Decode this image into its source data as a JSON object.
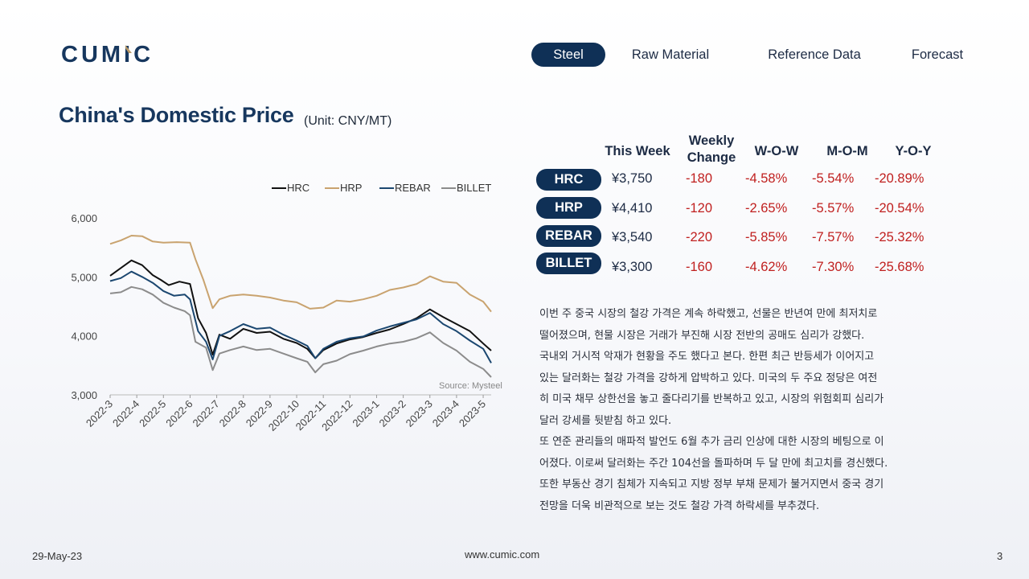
{
  "brand": {
    "logo_text": "CUMIC",
    "logo_color": "#17375e",
    "accent_color": "#b89968"
  },
  "nav": {
    "items": [
      "Steel",
      "Raw Material",
      "Reference Data",
      "Forecast"
    ],
    "active_index": 0
  },
  "page": {
    "title": "China's Domestic Price",
    "unit": "(Unit: CNY/MT)"
  },
  "table": {
    "headers": [
      "This Week",
      "Weekly\nChange",
      "W-O-W",
      "M-O-M",
      "Y-O-Y"
    ],
    "rows": [
      {
        "name": "HRC",
        "price": "¥3,750",
        "change": "-180",
        "wow": "-4.58%",
        "mom": "-5.54%",
        "yoy": "-20.89%"
      },
      {
        "name": "HRP",
        "price": "¥4,410",
        "change": "-120",
        "wow": "-2.65%",
        "mom": "-5.57%",
        "yoy": "-20.54%"
      },
      {
        "name": "REBAR",
        "price": "¥3,540",
        "change": "-220",
        "wow": "-5.85%",
        "mom": "-7.57%",
        "yoy": "-25.32%"
      },
      {
        "name": "BILLET",
        "price": "¥3,300",
        "change": "-160",
        "wow": "-4.62%",
        "mom": "-7.30%",
        "yoy": "-25.68%"
      }
    ]
  },
  "commentary": [
    "이번 주 중국 시장의 철강 가격은 계속 하락했고, 선물은 반년여 만에 최저치로",
    "떨어졌으며, 현물 시장은 거래가 부진해 시장 전반의 공매도 심리가 강했다.",
    "국내외 거시적 악재가 현황을 주도 했다고 본다. 한편 최근 반등세가 이어지고",
    "있는 달러화는 철강 가격을 강하게 압박하고 있다. 미국의 두 주요 정당은 여전",
    "히 미국 채무 상한선을 놓고 줄다리기를 반복하고 있고, 시장의 위험회피 심리가",
    "달러 강세를 뒷받침 하고 있다.",
    "또 연준 관리들의 매파적 발언도 6월 추가 금리 인상에 대한 시장의 베팅으로 이",
    "어졌다. 이로써 달러화는 주간 104선을 돌파하며 두 달 만에 최고치를 경신했다.",
    "또한 부동산 경기 침체가 지속되고 지방 정부 부채 문제가 불거지면서 중국 경기",
    "전망을 더욱 비관적으로 보는 것도 철강 가격 하락세를 부추겼다."
  ],
  "footer": {
    "date": "29-May-23",
    "url": "www.cumic.com",
    "page": "3"
  },
  "chart_data": {
    "type": "line",
    "ylim": [
      3000,
      6000
    ],
    "yticks": [
      "6,000",
      "5,000",
      "4,000",
      "3,000"
    ],
    "ytick_values": [
      6000,
      5000,
      4000,
      3000
    ],
    "x_categories": [
      "2022-3",
      "2022-4",
      "2022-5",
      "2022-6",
      "2022-7",
      "2022-8",
      "2022-9",
      "2022-10",
      "2022-11",
      "2022-12",
      "2023-1",
      "2023-2",
      "2023-3",
      "2023-4",
      "2023-5"
    ],
    "x_start_index": 0,
    "x_end_index": 14.3,
    "legend_position": "top",
    "source": "Source: Mysteel",
    "series": [
      {
        "name": "HRC",
        "color": "#111111",
        "points": [
          [
            0,
            5020
          ],
          [
            0.4,
            5150
          ],
          [
            0.8,
            5280
          ],
          [
            1.2,
            5200
          ],
          [
            1.6,
            5030
          ],
          [
            1.9,
            4950
          ],
          [
            2.2,
            4860
          ],
          [
            2.6,
            4920
          ],
          [
            3.0,
            4880
          ],
          [
            3.3,
            4300
          ],
          [
            3.6,
            4050
          ],
          [
            3.85,
            3680
          ],
          [
            4.1,
            4020
          ],
          [
            4.5,
            3950
          ],
          [
            5.0,
            4120
          ],
          [
            5.5,
            4050
          ],
          [
            6.0,
            4070
          ],
          [
            6.5,
            3950
          ],
          [
            7.0,
            3880
          ],
          [
            7.4,
            3780
          ],
          [
            7.7,
            3620
          ],
          [
            8.0,
            3760
          ],
          [
            8.5,
            3870
          ],
          [
            9.0,
            3940
          ],
          [
            9.5,
            3980
          ],
          [
            10.0,
            4050
          ],
          [
            10.5,
            4110
          ],
          [
            11.0,
            4200
          ],
          [
            11.5,
            4300
          ],
          [
            12.0,
            4450
          ],
          [
            12.5,
            4320
          ],
          [
            13.0,
            4200
          ],
          [
            13.5,
            4080
          ],
          [
            14.0,
            3870
          ],
          [
            14.3,
            3750
          ]
        ]
      },
      {
        "name": "HRP",
        "color": "#c9a36f",
        "points": [
          [
            0,
            5560
          ],
          [
            0.4,
            5620
          ],
          [
            0.8,
            5700
          ],
          [
            1.2,
            5690
          ],
          [
            1.6,
            5600
          ],
          [
            2.0,
            5580
          ],
          [
            2.5,
            5590
          ],
          [
            3.0,
            5580
          ],
          [
            3.2,
            5300
          ],
          [
            3.5,
            4950
          ],
          [
            3.85,
            4470
          ],
          [
            4.1,
            4620
          ],
          [
            4.5,
            4680
          ],
          [
            5.0,
            4700
          ],
          [
            5.5,
            4680
          ],
          [
            6.0,
            4650
          ],
          [
            6.5,
            4600
          ],
          [
            7.0,
            4570
          ],
          [
            7.5,
            4460
          ],
          [
            8.0,
            4480
          ],
          [
            8.5,
            4600
          ],
          [
            9.0,
            4580
          ],
          [
            9.5,
            4620
          ],
          [
            10.0,
            4680
          ],
          [
            10.5,
            4780
          ],
          [
            11.0,
            4820
          ],
          [
            11.5,
            4880
          ],
          [
            12.0,
            5010
          ],
          [
            12.5,
            4920
          ],
          [
            13.0,
            4900
          ],
          [
            13.5,
            4700
          ],
          [
            14.0,
            4580
          ],
          [
            14.3,
            4410
          ]
        ]
      },
      {
        "name": "REBAR",
        "color": "#1b4770",
        "points": [
          [
            0,
            4930
          ],
          [
            0.4,
            4980
          ],
          [
            0.8,
            5090
          ],
          [
            1.2,
            5000
          ],
          [
            1.6,
            4900
          ],
          [
            2.0,
            4760
          ],
          [
            2.4,
            4680
          ],
          [
            2.8,
            4700
          ],
          [
            3.0,
            4620
          ],
          [
            3.3,
            4080
          ],
          [
            3.6,
            3900
          ],
          [
            3.85,
            3600
          ],
          [
            4.1,
            4000
          ],
          [
            4.5,
            4080
          ],
          [
            5.0,
            4200
          ],
          [
            5.5,
            4120
          ],
          [
            6.0,
            4140
          ],
          [
            6.5,
            4020
          ],
          [
            7.0,
            3920
          ],
          [
            7.4,
            3830
          ],
          [
            7.7,
            3620
          ],
          [
            8.0,
            3780
          ],
          [
            8.5,
            3900
          ],
          [
            9.0,
            3960
          ],
          [
            9.5,
            3990
          ],
          [
            10.0,
            4090
          ],
          [
            10.5,
            4160
          ],
          [
            11.0,
            4220
          ],
          [
            11.5,
            4280
          ],
          [
            12.0,
            4390
          ],
          [
            12.5,
            4200
          ],
          [
            13.0,
            4080
          ],
          [
            13.5,
            3920
          ],
          [
            14.0,
            3780
          ],
          [
            14.3,
            3540
          ]
        ]
      },
      {
        "name": "BILLET",
        "color": "#8c8c8c",
        "points": [
          [
            0,
            4720
          ],
          [
            0.4,
            4740
          ],
          [
            0.8,
            4830
          ],
          [
            1.2,
            4790
          ],
          [
            1.6,
            4700
          ],
          [
            2.0,
            4560
          ],
          [
            2.4,
            4480
          ],
          [
            2.8,
            4420
          ],
          [
            3.0,
            4350
          ],
          [
            3.2,
            3900
          ],
          [
            3.6,
            3800
          ],
          [
            3.85,
            3420
          ],
          [
            4.1,
            3700
          ],
          [
            4.5,
            3760
          ],
          [
            5.0,
            3820
          ],
          [
            5.5,
            3760
          ],
          [
            6.0,
            3780
          ],
          [
            6.5,
            3700
          ],
          [
            7.0,
            3620
          ],
          [
            7.4,
            3560
          ],
          [
            7.7,
            3380
          ],
          [
            8.0,
            3520
          ],
          [
            8.5,
            3580
          ],
          [
            9.0,
            3690
          ],
          [
            9.5,
            3750
          ],
          [
            10.0,
            3820
          ],
          [
            10.5,
            3870
          ],
          [
            11.0,
            3900
          ],
          [
            11.5,
            3960
          ],
          [
            12.0,
            4060
          ],
          [
            12.5,
            3880
          ],
          [
            13.0,
            3750
          ],
          [
            13.5,
            3560
          ],
          [
            14.0,
            3440
          ],
          [
            14.3,
            3300
          ]
        ]
      }
    ]
  }
}
